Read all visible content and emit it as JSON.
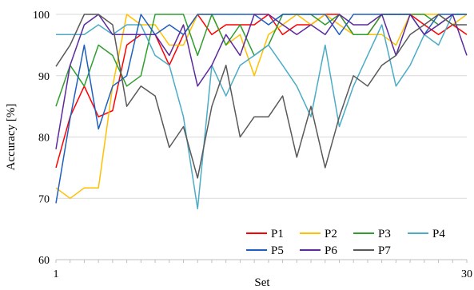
{
  "chart_data": {
    "type": "line",
    "xlabel": "Set",
    "ylabel": "Accuracy [%]",
    "ylim": [
      60,
      100
    ],
    "y_ticks": [
      60,
      70,
      80,
      90,
      100
    ],
    "x_ticks": [
      "1",
      "30"
    ],
    "grid": "horizontal",
    "legend_position": "bottom-right, inside plot",
    "x": [
      1,
      2,
      3,
      4,
      5,
      6,
      7,
      8,
      9,
      10,
      11,
      12,
      13,
      14,
      15,
      16,
      17,
      18,
      19,
      20,
      21,
      22,
      23,
      24,
      25,
      26,
      27,
      28,
      29,
      30
    ],
    "series": [
      {
        "name": "P1",
        "color": "#ff0000",
        "values": [
          75,
          83.3,
          88.3,
          83.3,
          84.3,
          95,
          96.7,
          96.7,
          91.7,
          96.7,
          100,
          96.7,
          98.3,
          98.3,
          98.3,
          100,
          96.7,
          98.3,
          98.3,
          100,
          100,
          96.7,
          96.7,
          100,
          100,
          100,
          98.3,
          96.7,
          98.3,
          96.7
        ]
      },
      {
        "name": "P2",
        "color": "#ffc000",
        "values": [
          71.7,
          70,
          71.7,
          71.7,
          88.3,
          100,
          98.3,
          98.3,
          95,
          95,
          100,
          100,
          95,
          96.7,
          90,
          96.7,
          98.3,
          100,
          98.3,
          100,
          98.3,
          96.7,
          96.7,
          96.7,
          95,
          100,
          100,
          100,
          98.3,
          100
        ]
      },
      {
        "name": "P3",
        "color": "#2f9e2f",
        "values": [
          85,
          91.7,
          88.3,
          95,
          93.3,
          88.3,
          90,
          100,
          100,
          100,
          93.3,
          100,
          95,
          98.3,
          93.3,
          95,
          100,
          100,
          100,
          98.3,
          100,
          96.7,
          96.7,
          100,
          100,
          100,
          100,
          98.3,
          100,
          100
        ]
      },
      {
        "name": "P4",
        "color": "#4bacc6",
        "values": [
          96.7,
          96.7,
          96.7,
          98.3,
          96.7,
          98.3,
          98.3,
          93.3,
          91.7,
          83.3,
          68.3,
          91.7,
          86.7,
          91.7,
          93.3,
          95,
          91.7,
          88.3,
          83.3,
          95,
          81.7,
          88.3,
          93.3,
          98.3,
          88.3,
          91.7,
          96.7,
          95,
          100,
          100
        ]
      },
      {
        "name": "P5",
        "color": "#1f5fbf",
        "values": [
          69.2,
          83,
          95,
          81.3,
          88.3,
          90,
          100,
          96.7,
          98.3,
          96.7,
          100,
          100,
          100,
          100,
          100,
          98.3,
          100,
          100,
          100,
          100,
          96.7,
          100,
          100,
          100,
          100,
          100,
          96.7,
          100,
          100,
          100
        ]
      },
      {
        "name": "P6",
        "color": "#5b2a9e",
        "values": [
          78,
          91.7,
          98.3,
          100,
          96.7,
          96.7,
          96.7,
          96.7,
          93.3,
          98.3,
          88.3,
          91.7,
          96.7,
          93.3,
          100,
          100,
          98.3,
          96.7,
          98.3,
          96.7,
          100,
          98.3,
          98.3,
          100,
          93.3,
          100,
          96.7,
          98.3,
          100,
          93.3
        ]
      },
      {
        "name": "P7",
        "color": "#595959",
        "values": [
          91.5,
          95,
          100,
          100,
          98.3,
          85,
          88.3,
          86.7,
          78.3,
          81.7,
          73.3,
          85,
          91.7,
          80,
          83.3,
          83.3,
          86.7,
          76.7,
          85,
          75,
          83.3,
          90,
          88.3,
          91.7,
          93.3,
          96.7,
          98.3,
          100,
          98.3,
          98.3
        ]
      }
    ]
  }
}
